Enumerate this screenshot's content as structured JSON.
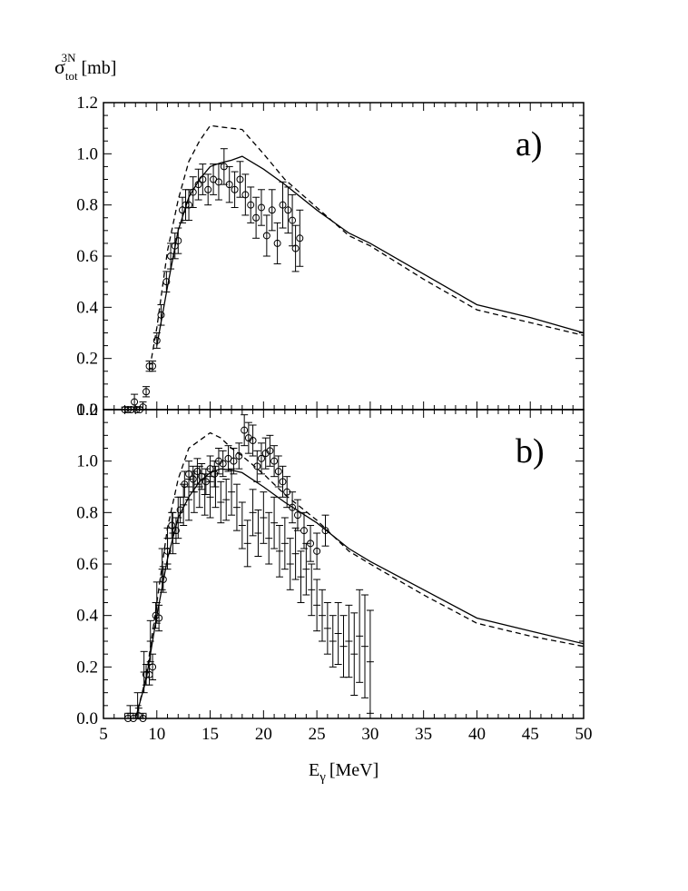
{
  "figure": {
    "ylabel_main": "σ",
    "ylabel_sub": "tot",
    "ylabel_sup": "3N",
    "ylabel_unit": "[mb]",
    "xlabel_main": "E",
    "xlabel_sub": "γ",
    "xlabel_unit": "[MeV]"
  },
  "chart_data": [
    {
      "panel_label": "a)",
      "type": "line",
      "xlim": [
        5,
        50
      ],
      "ylim": [
        0,
        1.2
      ],
      "x_ticks": [
        5,
        10,
        15,
        20,
        25,
        30,
        35,
        40,
        45,
        50
      ],
      "y_ticks": [
        0.0,
        0.2,
        0.4,
        0.6,
        0.8,
        1.0,
        1.2
      ],
      "series": [
        {
          "name": "solid",
          "style": "solid",
          "x": [
            10,
            11,
            12,
            13,
            14,
            15,
            16,
            17,
            18,
            20,
            22,
            25,
            28,
            30,
            35,
            40,
            45,
            50
          ],
          "y": [
            0.25,
            0.48,
            0.7,
            0.83,
            0.9,
            0.95,
            0.965,
            0.975,
            0.99,
            0.94,
            0.88,
            0.78,
            0.69,
            0.65,
            0.53,
            0.41,
            0.36,
            0.3
          ]
        },
        {
          "name": "dashed",
          "style": "dashed",
          "x": [
            9.5,
            10,
            11,
            12,
            13,
            14,
            15,
            16,
            17,
            18,
            20,
            22,
            25,
            28,
            30,
            35,
            40,
            45,
            50
          ],
          "y": [
            0.2,
            0.32,
            0.62,
            0.82,
            0.97,
            1.05,
            1.11,
            1.105,
            1.1,
            1.095,
            1.0,
            0.9,
            0.79,
            0.68,
            0.64,
            0.51,
            0.39,
            0.34,
            0.29
          ]
        },
        {
          "name": "data",
          "style": "circles",
          "x": [
            7.0,
            7.3,
            7.6,
            7.9,
            8.1,
            8.4,
            8.7,
            9.0,
            9.3,
            9.6,
            10.0,
            10.4,
            10.9,
            11.3,
            11.7,
            12.0,
            12.4,
            12.7,
            13.0,
            13.4,
            13.9,
            14.3,
            14.8,
            15.3,
            15.8,
            16.3,
            16.8,
            17.3,
            17.8,
            18.3,
            18.8,
            19.3,
            19.8,
            20.3,
            20.8,
            21.3,
            21.8,
            22.3,
            22.7,
            23.0,
            23.4
          ],
          "y": [
            0.0,
            0.0,
            0.0,
            0.03,
            0.0,
            0.0,
            0.01,
            0.07,
            0.17,
            0.17,
            0.27,
            0.37,
            0.5,
            0.6,
            0.64,
            0.66,
            0.78,
            0.8,
            0.8,
            0.85,
            0.88,
            0.9,
            0.86,
            0.9,
            0.89,
            0.95,
            0.88,
            0.86,
            0.9,
            0.84,
            0.8,
            0.75,
            0.79,
            0.68,
            0.78,
            0.65,
            0.8,
            0.78,
            0.74,
            0.63,
            0.67
          ],
          "err": [
            0.01,
            0.01,
            0.01,
            0.03,
            0.01,
            0.01,
            0.02,
            0.02,
            0.02,
            0.02,
            0.03,
            0.04,
            0.04,
            0.05,
            0.05,
            0.05,
            0.05,
            0.06,
            0.06,
            0.06,
            0.06,
            0.06,
            0.06,
            0.06,
            0.07,
            0.07,
            0.07,
            0.07,
            0.07,
            0.08,
            0.07,
            0.08,
            0.07,
            0.08,
            0.08,
            0.08,
            0.09,
            0.09,
            0.1,
            0.09,
            0.11
          ]
        }
      ]
    },
    {
      "panel_label": "b)",
      "type": "line",
      "xlim": [
        5,
        50
      ],
      "ylim": [
        0,
        1.2
      ],
      "x_ticks": [
        5,
        10,
        15,
        20,
        25,
        30,
        35,
        40,
        45,
        50
      ],
      "x_tick_labels": [
        "5",
        "10",
        "15",
        "20",
        "25",
        "30",
        "35",
        "40",
        "45",
        "50"
      ],
      "y_ticks": [
        0.0,
        0.2,
        0.4,
        0.6,
        0.8,
        1.0,
        1.2
      ],
      "series": [
        {
          "name": "solid",
          "style": "solid",
          "x": [
            8,
            9,
            10,
            11,
            12,
            13,
            14,
            15,
            16,
            17,
            18,
            20,
            22,
            25,
            28,
            30,
            35,
            40,
            45,
            50
          ],
          "y": [
            0.0,
            0.15,
            0.4,
            0.62,
            0.78,
            0.86,
            0.92,
            0.955,
            0.97,
            0.965,
            0.955,
            0.9,
            0.84,
            0.76,
            0.66,
            0.61,
            0.5,
            0.39,
            0.34,
            0.29
          ]
        },
        {
          "name": "dashed",
          "style": "dashed",
          "x": [
            8,
            9,
            10,
            11,
            12,
            13,
            14,
            15,
            16,
            17,
            18,
            20,
            22,
            25,
            28,
            30,
            35,
            40,
            45,
            50
          ],
          "y": [
            0.0,
            0.16,
            0.45,
            0.74,
            0.93,
            1.05,
            1.08,
            1.11,
            1.09,
            1.05,
            1.02,
            0.95,
            0.87,
            0.77,
            0.65,
            0.6,
            0.48,
            0.37,
            0.32,
            0.28
          ]
        },
        {
          "name": "data-circles",
          "style": "circles",
          "x": [
            7.3,
            7.8,
            8.3,
            8.7,
            9.0,
            9.3,
            9.6,
            9.9,
            10.2,
            10.6,
            11.0,
            11.4,
            11.8,
            12.2,
            12.6,
            13.0,
            13.4,
            13.8,
            14.2,
            14.6,
            15.0,
            15.4,
            15.8,
            16.2,
            16.7,
            17.2,
            17.7,
            18.2,
            18.6,
            19.0,
            19.4,
            19.8,
            20.2,
            20.6,
            21.0,
            21.4,
            21.8,
            22.2,
            22.7,
            23.2,
            23.8,
            24.4,
            25.0,
            25.8
          ],
          "y": [
            0.0,
            0.0,
            0.01,
            0.0,
            0.17,
            0.17,
            0.2,
            0.4,
            0.39,
            0.54,
            0.65,
            0.75,
            0.73,
            0.81,
            0.91,
            0.95,
            0.93,
            0.96,
            0.94,
            0.92,
            0.97,
            0.95,
            1.0,
            0.99,
            1.01,
            1.0,
            1.02,
            1.12,
            1.09,
            1.08,
            0.98,
            1.01,
            1.03,
            1.04,
            1.0,
            0.96,
            0.92,
            0.88,
            0.82,
            0.79,
            0.73,
            0.68,
            0.65,
            0.73
          ],
          "err": [
            0.02,
            0.02,
            0.03,
            0.02,
            0.04,
            0.04,
            0.05,
            0.05,
            0.05,
            0.05,
            0.05,
            0.05,
            0.05,
            0.05,
            0.05,
            0.05,
            0.05,
            0.05,
            0.05,
            0.05,
            0.05,
            0.05,
            0.05,
            0.05,
            0.05,
            0.05,
            0.05,
            0.06,
            0.06,
            0.06,
            0.06,
            0.06,
            0.06,
            0.06,
            0.06,
            0.06,
            0.06,
            0.06,
            0.06,
            0.06,
            0.07,
            0.07,
            0.07,
            0.06
          ]
        },
        {
          "name": "data-crosses",
          "style": "crosses",
          "x": [
            7.5,
            8.2,
            8.8,
            9.4,
            10.0,
            10.5,
            11.0,
            11.5,
            12.0,
            12.5,
            13.0,
            13.5,
            14.0,
            14.5,
            15.0,
            15.5,
            16.0,
            16.5,
            17.0,
            17.5,
            18.0,
            18.5,
            19.0,
            19.5,
            20.0,
            20.5,
            21.0,
            21.5,
            22.0,
            22.5,
            23.0,
            23.5,
            24.0,
            24.5,
            25.0,
            25.5,
            26.0,
            26.5,
            27.0,
            27.5,
            28.0,
            28.5,
            29.0,
            29.5,
            30.0
          ],
          "y": [
            0.02,
            0.05,
            0.18,
            0.3,
            0.45,
            0.58,
            0.66,
            0.72,
            0.78,
            0.83,
            0.85,
            0.88,
            0.9,
            0.87,
            0.86,
            0.9,
            0.84,
            0.85,
            0.88,
            0.82,
            0.75,
            0.68,
            0.8,
            0.72,
            0.78,
            0.7,
            0.76,
            0.65,
            0.68,
            0.6,
            0.64,
            0.55,
            0.58,
            0.5,
            0.44,
            0.4,
            0.35,
            0.3,
            0.33,
            0.28,
            0.3,
            0.25,
            0.32,
            0.28,
            0.22
          ],
          "err": [
            0.03,
            0.05,
            0.08,
            0.08,
            0.08,
            0.08,
            0.08,
            0.08,
            0.08,
            0.08,
            0.08,
            0.08,
            0.08,
            0.08,
            0.08,
            0.08,
            0.08,
            0.08,
            0.09,
            0.09,
            0.09,
            0.09,
            0.09,
            0.09,
            0.1,
            0.1,
            0.1,
            0.1,
            0.1,
            0.1,
            0.1,
            0.1,
            0.1,
            0.1,
            0.1,
            0.1,
            0.1,
            0.1,
            0.12,
            0.12,
            0.14,
            0.16,
            0.18,
            0.2,
            0.2
          ]
        }
      ]
    }
  ]
}
